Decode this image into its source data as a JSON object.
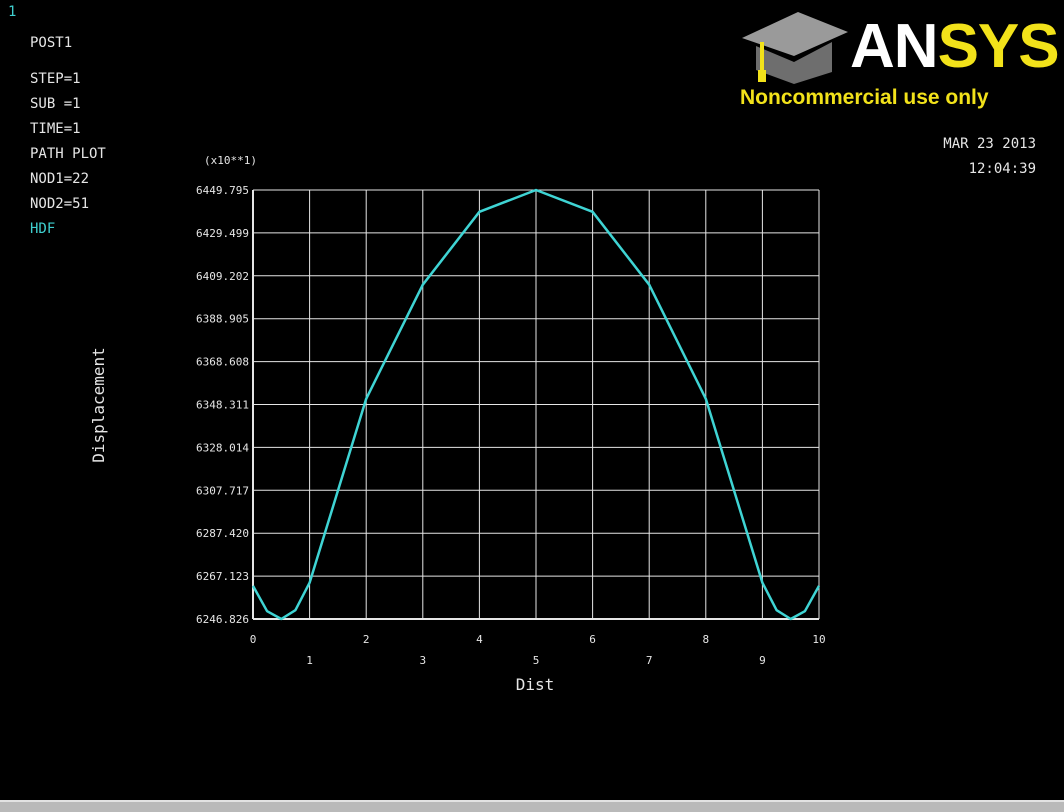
{
  "window_number": "1",
  "header": {
    "lines": [
      "POST1",
      "STEP=1",
      "SUB =1",
      "TIME=1",
      "PATH PLOT",
      "NOD1=22",
      "NOD2=51",
      "HDF"
    ]
  },
  "date": "MAR 23 2013",
  "time": "12:04:39",
  "logo": {
    "word_part1": "AN",
    "word_part2": "SYS",
    "tagline": "Noncommercial use only",
    "icon": "graduation-cap-icon"
  },
  "colors": {
    "background": "#000000",
    "curve": "#3fd4d4",
    "grid": "#e6e6e6",
    "text": "#e6e6e6",
    "hdf": "#3fcfcf",
    "logo_yellow": "#f2e21a"
  },
  "chart_data": {
    "type": "line",
    "xlabel": "Dist",
    "ylabel": "Displacement",
    "multiplier": "(x10**1)",
    "xlim": [
      0,
      10
    ],
    "ylim": [
      6246.826,
      6449.795
    ],
    "x_ticks": [
      "0",
      "1",
      "2",
      "3",
      "4",
      "5",
      "6",
      "7",
      "8",
      "9",
      "10"
    ],
    "y_ticks": [
      "6246.826",
      "6267.123",
      "6287.420",
      "6307.717",
      "6328.014",
      "6348.311",
      "6368.608",
      "6388.905",
      "6409.202",
      "6429.499",
      "6449.795"
    ],
    "grid": true,
    "series": [
      {
        "x": [
          0,
          0.25,
          0.5,
          0.75,
          1,
          2,
          3,
          4,
          5,
          6,
          7,
          8,
          9,
          9.25,
          9.5,
          9.75,
          10
        ],
        "y": [
          6262.5,
          6250.5,
          6246.826,
          6251.0,
          6264.0,
          6351.0,
          6405.0,
          6439.5,
          6449.795,
          6439.5,
          6405.0,
          6351.0,
          6264.0,
          6251.0,
          6246.826,
          6250.5,
          6262.5
        ]
      }
    ]
  }
}
